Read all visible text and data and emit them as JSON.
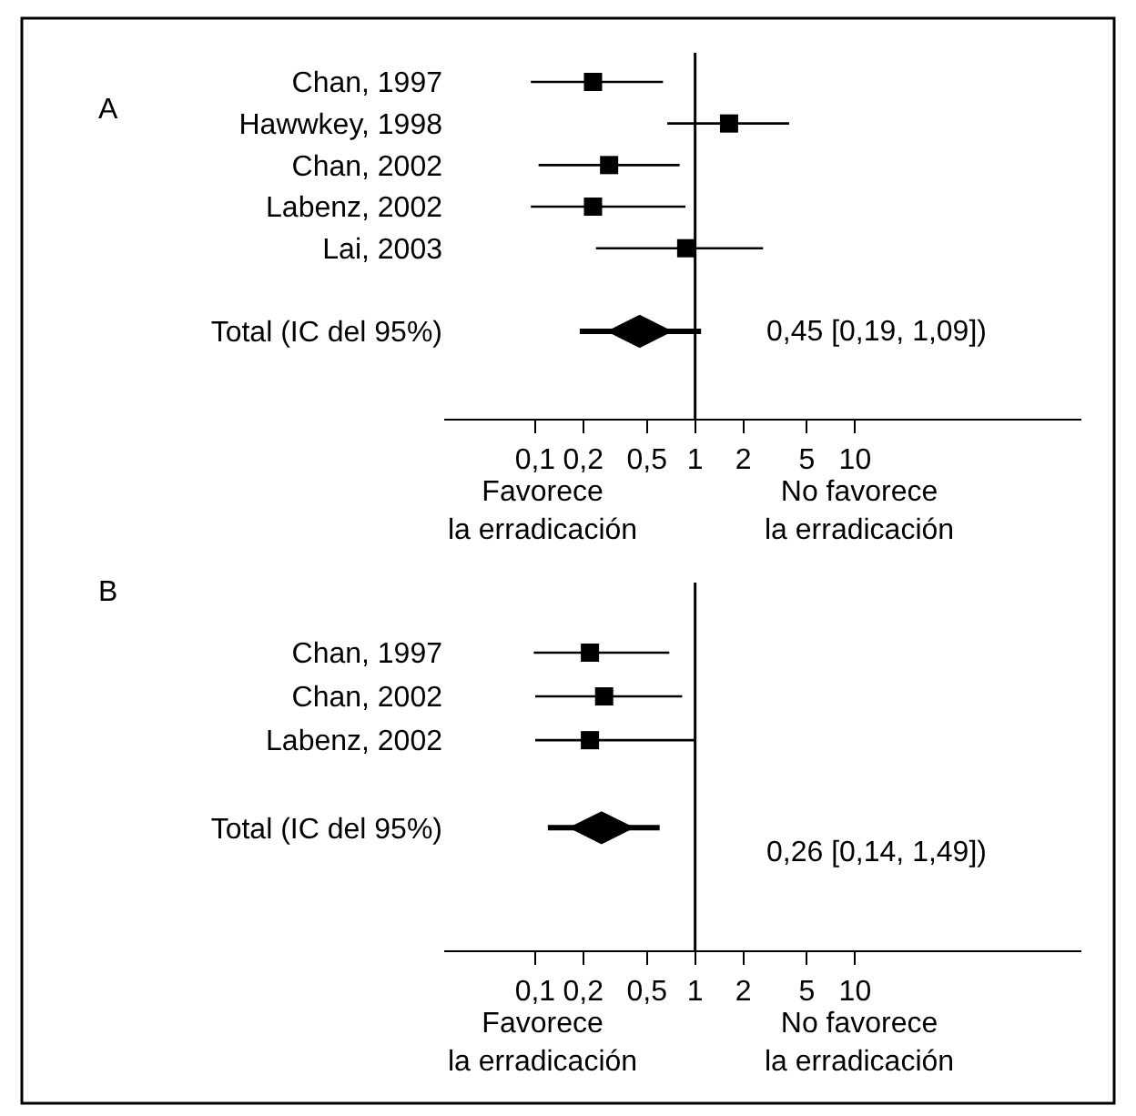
{
  "chart_data": [
    {
      "type": "scatter",
      "title": "A",
      "orientation": "horizontal",
      "log": "x",
      "categories": [
        "Chan, 1997",
        "Hawwkey, 1998",
        "Chan, 2002",
        "Labenz, 2002",
        "Lai, 2003",
        null,
        "Total (IC del 95%)"
      ],
      "series": [
        {
          "marker": "square",
          "color": "#000000",
          "values": [
            0.23,
            1.63,
            0.29,
            0.23,
            0.88,
            null,
            null
          ],
          "errors": [
            [
              0.094,
              0.63
            ],
            [
              0.67,
              3.87
            ],
            [
              0.105,
              0.8
            ],
            [
              0.094,
              0.87
            ],
            [
              0.24,
              2.66
            ],
            null,
            null
          ]
        },
        {
          "marker": "diamond",
          "color": "#000000",
          "values": [
            null,
            null,
            null,
            null,
            null,
            null,
            0.45
          ],
          "errors": [
            null,
            null,
            null,
            null,
            null,
            null,
            [
              0.19,
              1.09
            ]
          ]
        }
      ],
      "xlim": [
        0.027,
        260
      ],
      "xticks": [
        {
          "value": 0.1,
          "label": "0,1"
        },
        {
          "value": 0.2,
          "label": "0,2"
        },
        {
          "value": 0.5,
          "label": "0,5"
        },
        1,
        2,
        5,
        10
      ],
      "ref_lines": [
        {
          "axis": "x",
          "value": 1,
          "color": "#000000"
        }
      ],
      "annotations": [
        "Favorece\nla erradicación",
        "No favorece\nla erradicación",
        "0,45 [0,19, 1,09])"
      ]
    },
    {
      "type": "scatter",
      "title": "B",
      "orientation": "horizontal",
      "log": "x",
      "categories": [
        "Chan, 1997",
        "Chan, 2002",
        "Labenz, 2002",
        null,
        "Total (IC del 95%)"
      ],
      "series": [
        {
          "marker": "square",
          "color": "#000000",
          "values": [
            0.22,
            0.27,
            0.22,
            null,
            null
          ],
          "errors": [
            [
              0.098,
              0.69
            ],
            [
              0.1,
              0.83
            ],
            [
              0.1,
              0.99
            ],
            null,
            null
          ]
        },
        {
          "marker": "diamond",
          "color": "#000000",
          "values": [
            null,
            null,
            null,
            null,
            0.26
          ],
          "errors": [
            null,
            null,
            null,
            null,
            [
              0.12,
              0.6
            ]
          ]
        }
      ],
      "xlim": [
        0.027,
        260
      ],
      "xticks": [
        {
          "value": 0.1,
          "label": "0,1"
        },
        {
          "value": 0.2,
          "label": "0,2"
        },
        {
          "value": 0.5,
          "label": "0,5"
        },
        1,
        2,
        5,
        10
      ],
      "ref_lines": [
        {
          "axis": "x",
          "value": 1,
          "color": "#000000"
        }
      ],
      "annotations": [
        "Favorece\nla erradicación",
        "No favorece\nla erradicación",
        "0,26 [0,14, 1,49])"
      ]
    }
  ]
}
